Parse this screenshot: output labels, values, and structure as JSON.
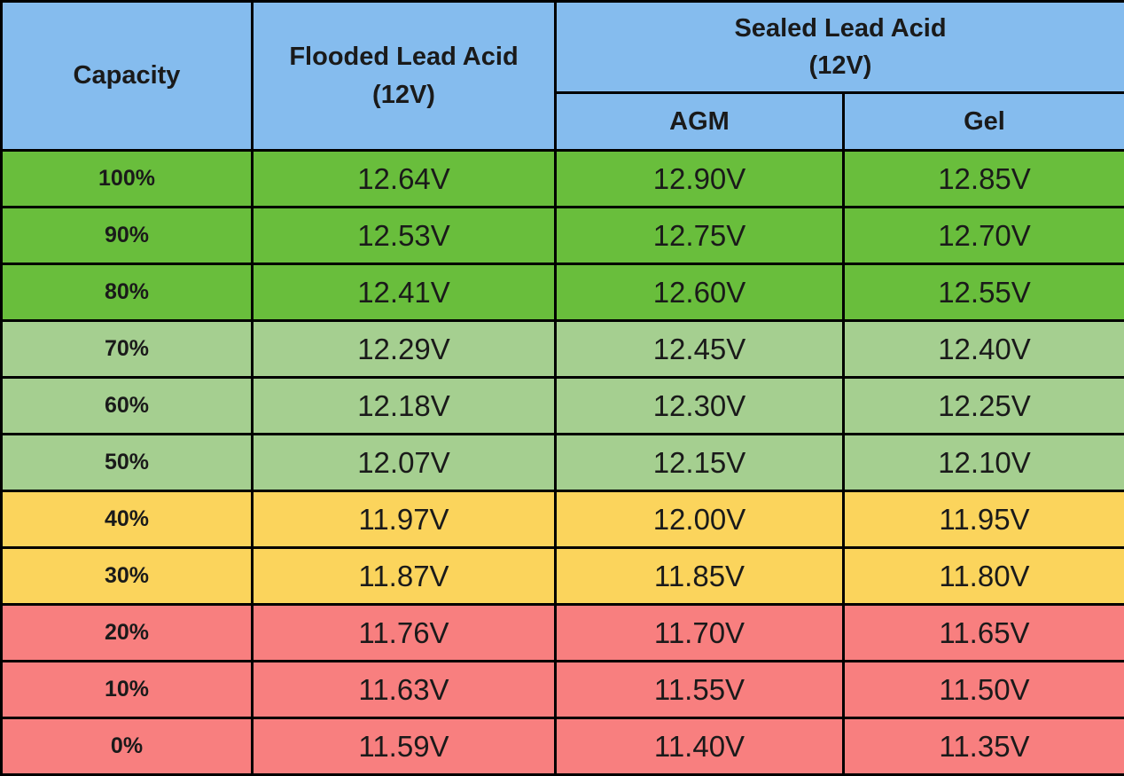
{
  "header": {
    "capacity": "Capacity",
    "flooded": "Flooded Lead Acid\n(12V)",
    "sealed": "Sealed Lead Acid\n(12V)",
    "agm": "AGM",
    "gel": "Gel"
  },
  "rows": [
    {
      "capacity": "100%",
      "flooded": "12.64V",
      "agm": "12.90V",
      "gel": "12.85V",
      "zone": "green"
    },
    {
      "capacity": "90%",
      "flooded": "12.53V",
      "agm": "12.75V",
      "gel": "12.70V",
      "zone": "green"
    },
    {
      "capacity": "80%",
      "flooded": "12.41V",
      "agm": "12.60V",
      "gel": "12.55V",
      "zone": "green"
    },
    {
      "capacity": "70%",
      "flooded": "12.29V",
      "agm": "12.45V",
      "gel": "12.40V",
      "zone": "light_green"
    },
    {
      "capacity": "60%",
      "flooded": "12.18V",
      "agm": "12.30V",
      "gel": "12.25V",
      "zone": "light_green"
    },
    {
      "capacity": "50%",
      "flooded": "12.07V",
      "agm": "12.15V",
      "gel": "12.10V",
      "zone": "light_green"
    },
    {
      "capacity": "40%",
      "flooded": "11.97V",
      "agm": "12.00V",
      "gel": "11.95V",
      "zone": "yellow"
    },
    {
      "capacity": "30%",
      "flooded": "11.87V",
      "agm": "11.85V",
      "gel": "11.80V",
      "zone": "yellow"
    },
    {
      "capacity": "20%",
      "flooded": "11.76V",
      "agm": "11.70V",
      "gel": "11.65V",
      "zone": "red"
    },
    {
      "capacity": "10%",
      "flooded": "11.63V",
      "agm": "11.55V",
      "gel": "11.50V",
      "zone": "red"
    },
    {
      "capacity": "0%",
      "flooded": "11.59V",
      "agm": "11.40V",
      "gel": "11.35V",
      "zone": "red"
    }
  ],
  "colors": {
    "header_blue": "#85BCEE",
    "green": "#69BE3C",
    "light_green": "#A5CF90",
    "yellow": "#FBD45C",
    "red": "#F87F7F",
    "border": "#000000",
    "text": "#1a1a1a"
  },
  "chart_data": {
    "type": "table",
    "columns": [
      "Capacity",
      "Flooded Lead Acid (12V)",
      "Sealed Lead Acid (12V) — AGM",
      "Sealed Lead Acid (12V) — Gel"
    ],
    "rows": [
      [
        "100%",
        "12.64V",
        "12.90V",
        "12.85V"
      ],
      [
        "90%",
        "12.53V",
        "12.75V",
        "12.70V"
      ],
      [
        "80%",
        "12.41V",
        "12.60V",
        "12.55V"
      ],
      [
        "70%",
        "12.29V",
        "12.45V",
        "12.40V"
      ],
      [
        "60%",
        "12.18V",
        "12.30V",
        "12.25V"
      ],
      [
        "50%",
        "12.07V",
        "12.15V",
        "12.10V"
      ],
      [
        "40%",
        "11.97V",
        "12.00V",
        "11.95V"
      ],
      [
        "30%",
        "11.87V",
        "11.85V",
        "11.80V"
      ],
      [
        "20%",
        "11.76V",
        "11.70V",
        "11.65V"
      ],
      [
        "10%",
        "11.63V",
        "11.55V",
        "11.50V"
      ],
      [
        "0%",
        "11.59V",
        "11.40V",
        "11.35V"
      ]
    ],
    "legend_zones": [
      {
        "zone": "green",
        "capacity_range": "80%–100%"
      },
      {
        "zone": "light_green",
        "capacity_range": "50%–70%"
      },
      {
        "zone": "yellow",
        "capacity_range": "30%–40%"
      },
      {
        "zone": "red",
        "capacity_range": "0%–20%"
      }
    ]
  }
}
